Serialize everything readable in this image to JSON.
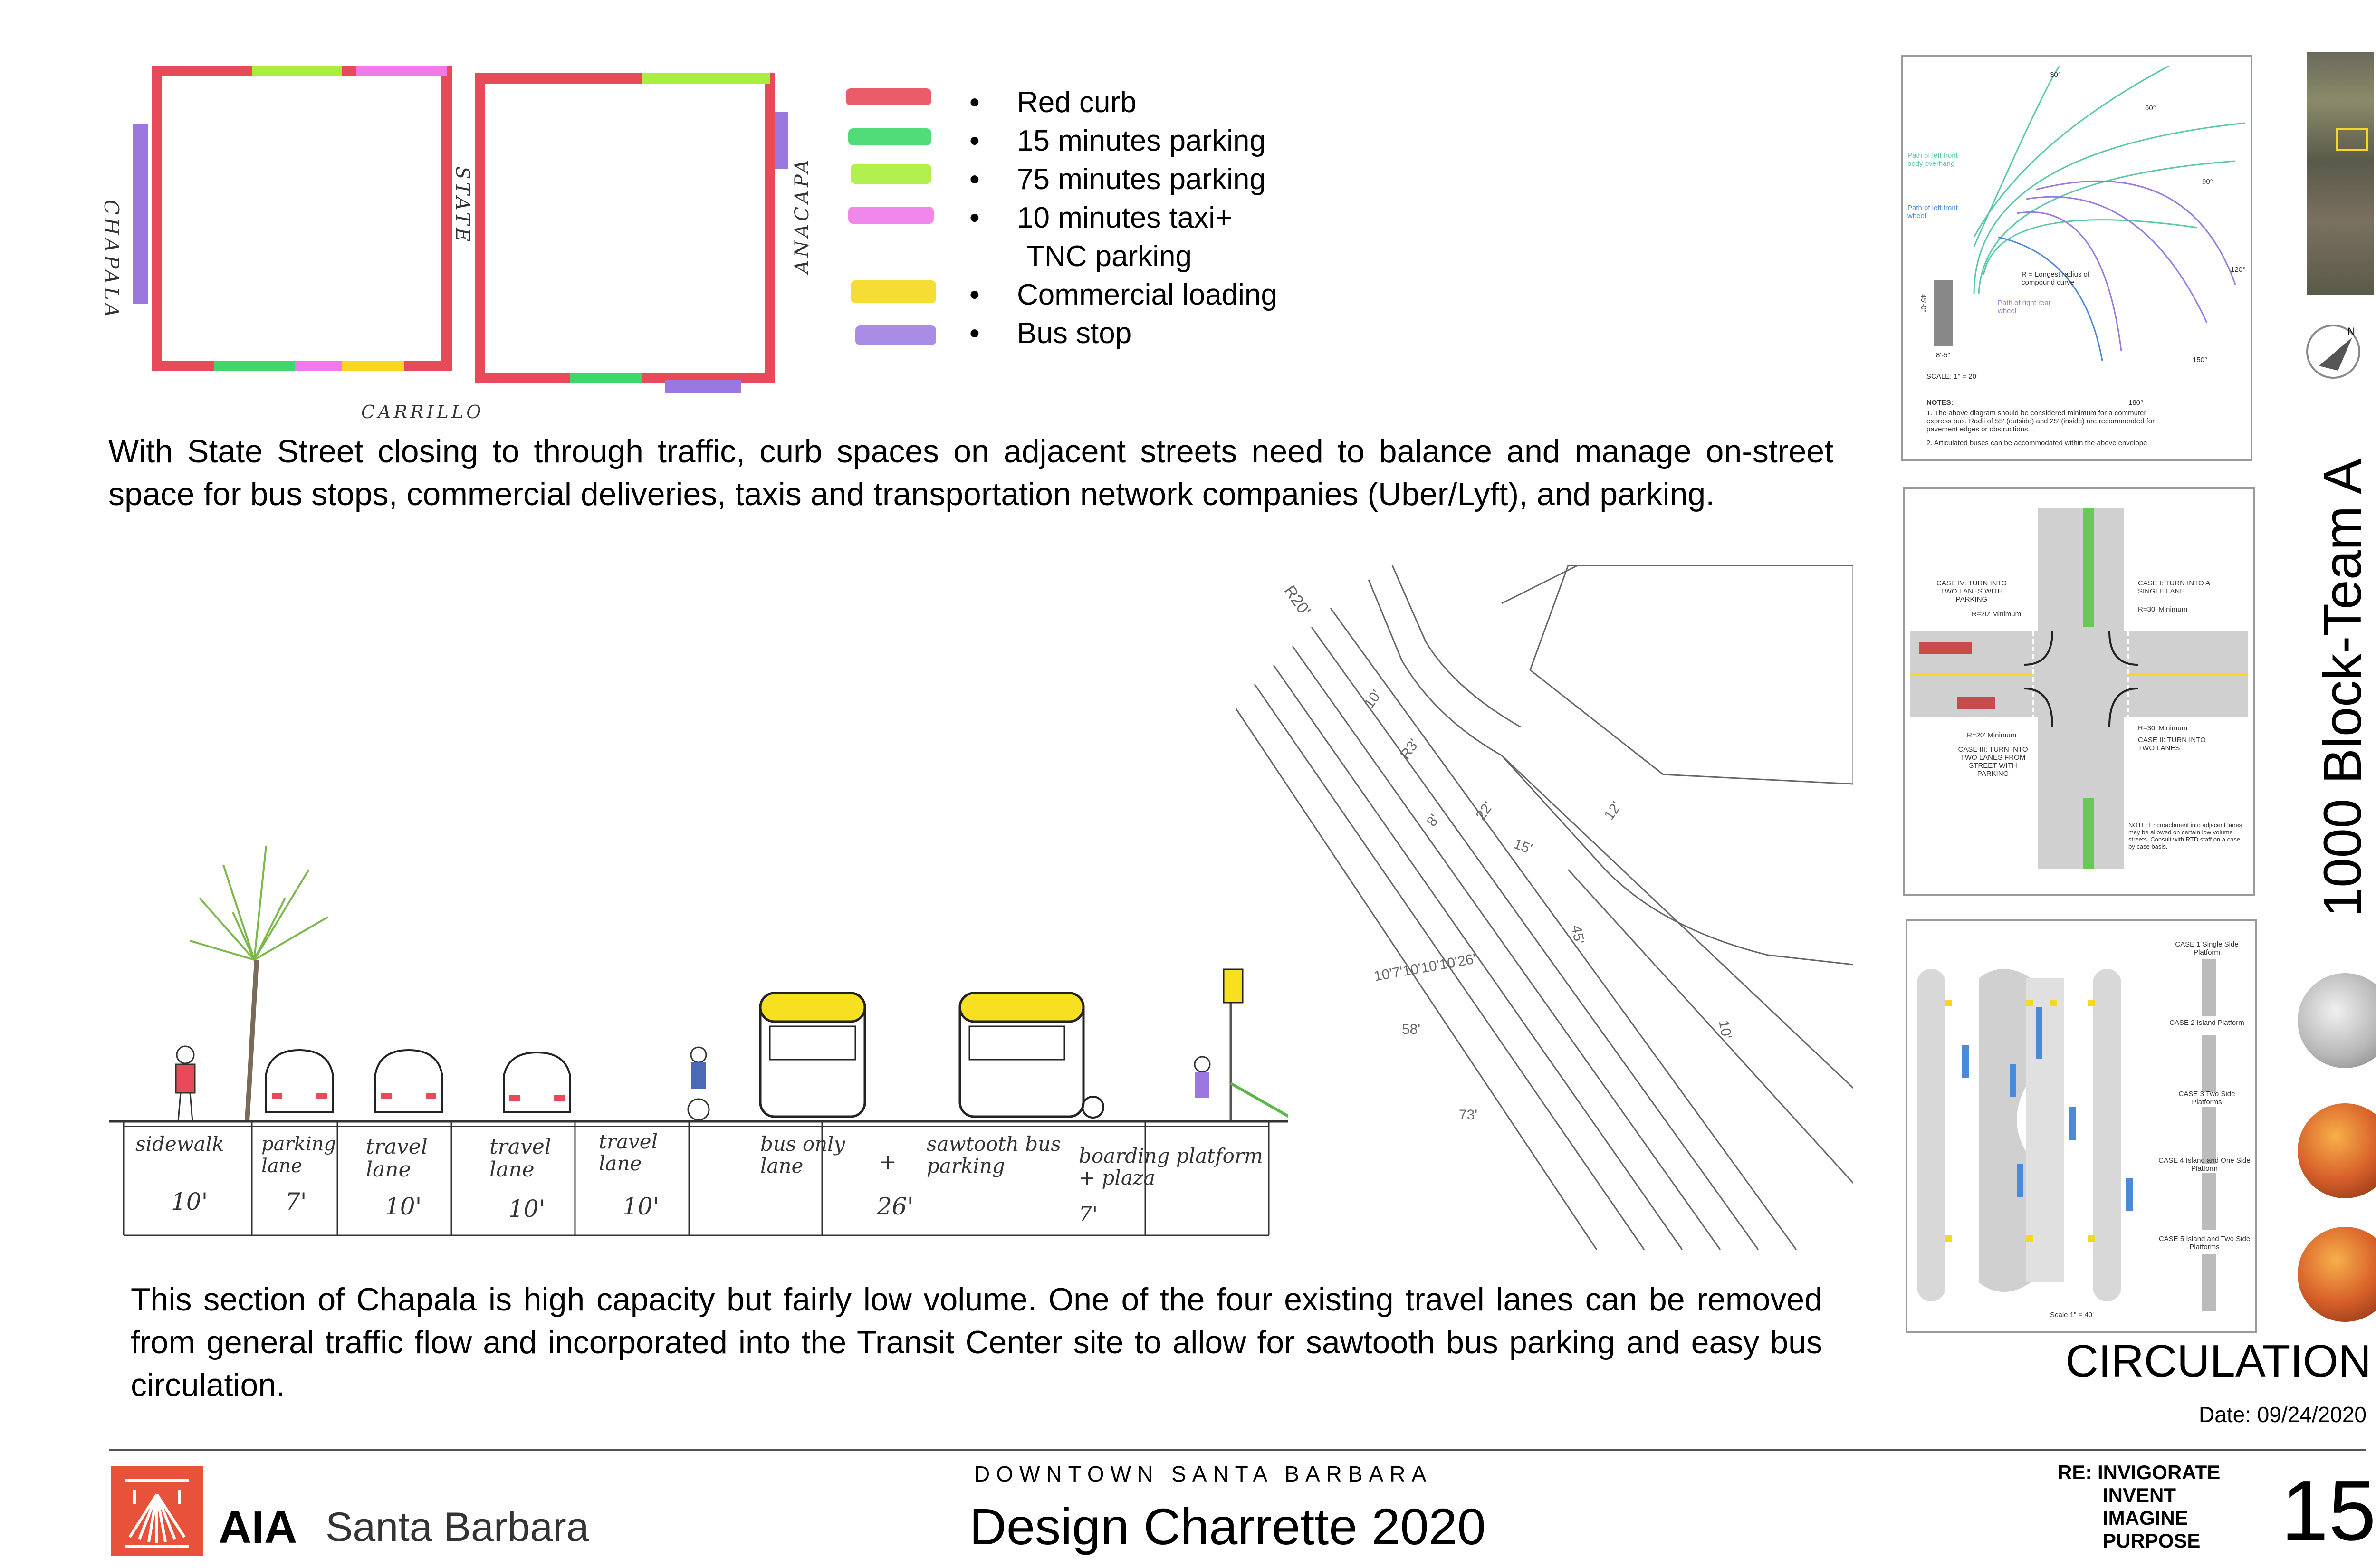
{
  "block_map": {
    "street_left": "CHAPALA",
    "street_middle": "STATE",
    "street_right": "ANACAPA",
    "street_bottom": "CARRILLO"
  },
  "legend": [
    {
      "label": "Red curb",
      "color": "#e84a5a"
    },
    {
      "label": "15 minutes parking",
      "color": "#3ed86a"
    },
    {
      "label": "75 minutes parking",
      "color": "#a8ee3a"
    },
    {
      "label": "10 minutes taxi+",
      "label_cont": "TNC parking",
      "color": "#f07ae8"
    },
    {
      "label": "Commercial loading",
      "color": "#f7d820"
    },
    {
      "label": "Bus stop",
      "color": "#9a78e0"
    }
  ],
  "paragraph_top": "With State Street closing to through traffic, curb spaces on adjacent streets need to balance and manage on-street space for bus stops, commercial deliveries, taxis and transportation network companies (Uber/Lyft), and parking.",
  "section": {
    "segments": [
      {
        "label": "sidewalk",
        "width": "10'"
      },
      {
        "label": "parking lane",
        "width": "7'"
      },
      {
        "label": "travel lane",
        "width": "10'"
      },
      {
        "label": "travel lane",
        "width": "10'"
      },
      {
        "label": "travel lane",
        "width": "10'"
      },
      {
        "label": "bus only lane",
        "width": ""
      },
      {
        "label": "sawtooth bus parking",
        "width": "26'"
      },
      {
        "label": "boarding platform + plaza",
        "width": "7'"
      }
    ]
  },
  "plan_dims": [
    "R20'",
    "10'",
    "R3'",
    "8'",
    "22'",
    "12'",
    "15'",
    "10'7'10'10'10'26'",
    "58'",
    "45'",
    "73'",
    "10'"
  ],
  "paragraph_bottom": "This section of Chapala is high capacity but fairly low volume. One of the four existing travel lanes can be removed from general traffic flow and incorporated into the Transit Center site to allow for sawtooth bus parking and easy bus circulation.",
  "diagram1": {
    "angles": [
      "30°",
      "60°",
      "90°",
      "120°",
      "150°",
      "180°"
    ],
    "labels": [
      "Path of left front body overhang",
      "Path of left front wheel",
      "R = Longest radius of compound curve",
      "Path of right rear wheel",
      "45'-0\"",
      "8'-5\"",
      "SCALE: 1\" = 20'"
    ],
    "notes_title": "NOTES:",
    "notes": [
      "1. The above diagram should be considered minimum for a commuter express bus. Radii of 55' (outside) and 25' (inside) are recommended for pavement edges or obstructions.",
      "2. Articulated buses can be accommodated within the above envelope."
    ]
  },
  "diagram2": {
    "case_iv": "CASE IV: TURN INTO TWO LANES WITH PARKING",
    "case_iv_r": "R=20' Minimum",
    "case_i": "CASE I: TURN INTO A SINGLE LANE",
    "case_i_r": "R=30' Minimum",
    "case_iii": "CASE III: TURN INTO TWO LANES FROM STREET WITH PARKING",
    "case_iii_r": "R=20' Minimum",
    "case_ii": "CASE II: TURN INTO TWO LANES",
    "case_ii_r": "R=30' Minimum",
    "note": "NOTE: Encroachment into adjacent lanes may be allowed on certain low volume streets. Consult with RTD staff on a case by case basis."
  },
  "diagram3": {
    "cases": [
      "CASE 1 Single Side Platform",
      "CASE 2 Island Platform",
      "CASE 3 Two Side Platforms",
      "CASE 4 Island and One Side Platform",
      "CASE 5 Island and Two Side Platforms"
    ],
    "scale": "Scale 1\" = 40'"
  },
  "sidebar_title": "1000 Block-Team A",
  "section_title": "CIRCULATION",
  "date": "Date: 09/24/2020",
  "footer": {
    "logo_aia": "AIA",
    "logo_city": "Santa Barbara",
    "subtitle": "DOWNTOWN SANTA BARBARA",
    "title": "Design Charrette 2020",
    "re_lines": [
      "RE: INVIGORATE",
      "INVENT",
      "IMAGINE",
      "PURPOSE"
    ],
    "page_number": "15"
  },
  "colors": {
    "aia_red": "#e8523a",
    "frame": "#9a9a9a"
  }
}
